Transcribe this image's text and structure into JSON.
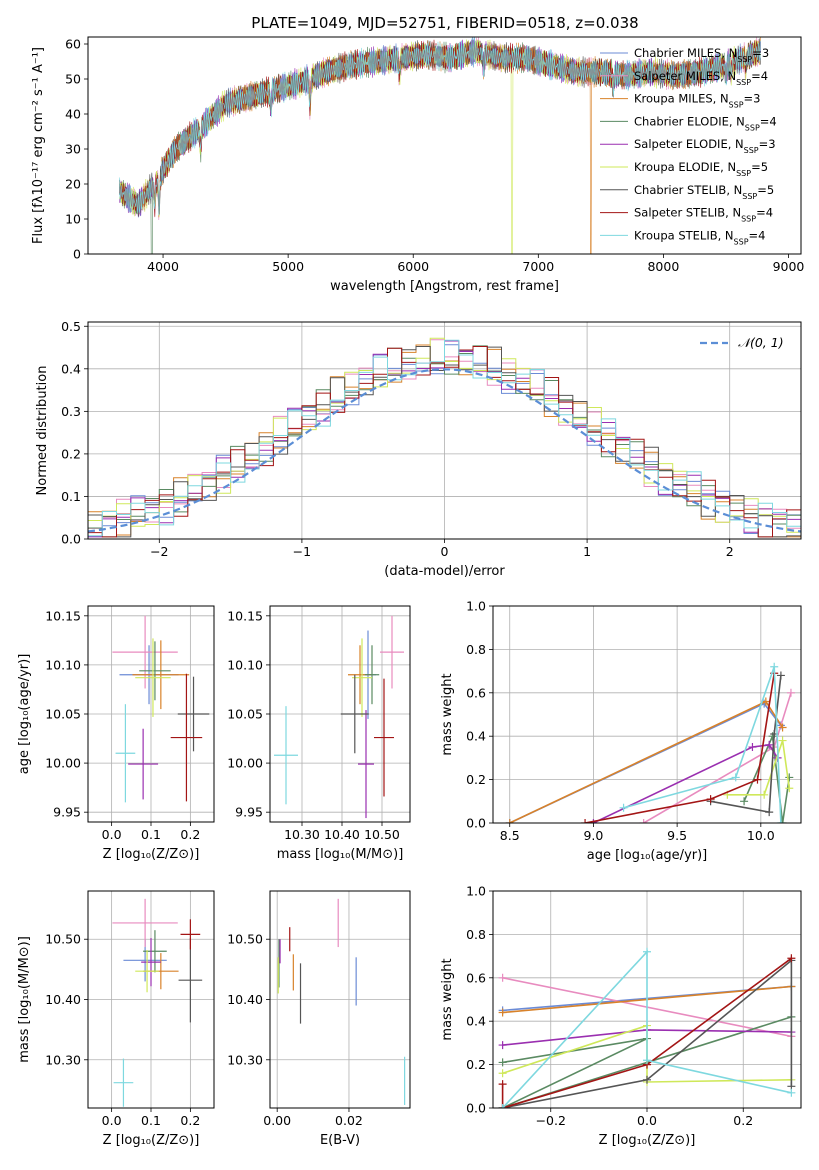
{
  "figure": {
    "title": "PLATE=1049, MJD=52751, FIBERID=0518, z=0.038"
  },
  "colors": {
    "chabrier_miles": "#6b8bd6",
    "salpeter_miles": "#e88bbf",
    "kroupa_miles": "#d8822a",
    "chabrier_elodie": "#5a8a62",
    "salpeter_elodie": "#9a2fb0",
    "kroupa_elodie": "#cfe85a",
    "chabrier_stelib": "#555555",
    "salpeter_stelib": "#a31515",
    "kroupa_stelib": "#7ed8df",
    "normal": "#5b8ed6"
  },
  "legend_labels": [
    {
      "main": "Chabrier MILES, N",
      "sub": "SSP",
      "tail": "=3",
      "color": "#6b8bd6"
    },
    {
      "main": "Salpeter MILES, N",
      "sub": "SSP",
      "tail": "=4",
      "color": "#e88bbf"
    },
    {
      "main": "Kroupa MILES, N",
      "sub": "SSP",
      "tail": "=3",
      "color": "#d8822a"
    },
    {
      "main": "Chabrier ELODIE, N",
      "sub": "SSP",
      "tail": "=4",
      "color": "#5a8a62"
    },
    {
      "main": "Salpeter ELODIE, N",
      "sub": "SSP",
      "tail": "=3",
      "color": "#9a2fb0"
    },
    {
      "main": "Kroupa ELODIE, N",
      "sub": "SSP",
      "tail": "=5",
      "color": "#cfe85a"
    },
    {
      "main": "Chabrier STELIB, N",
      "sub": "SSP",
      "tail": "=5",
      "color": "#555555"
    },
    {
      "main": "Salpeter STELIB, N",
      "sub": "SSP",
      "tail": "=4",
      "color": "#a31515"
    },
    {
      "main": "Kroupa STELIB, N",
      "sub": "SSP",
      "tail": "=4",
      "color": "#7ed8df"
    }
  ],
  "chart_data": [
    {
      "id": "spectrum",
      "type": "line",
      "xlabel": "wavelength [Angstrom, rest frame]",
      "ylabel": "Flux [fλ10⁻¹⁷ erg cm⁻² s⁻¹ A⁻¹]",
      "xlim": [
        3400,
        9100
      ],
      "ylim": [
        0,
        62
      ],
      "xticks": [
        4000,
        5000,
        6000,
        7000,
        8000,
        9000
      ],
      "yticks": [
        0,
        10,
        20,
        30,
        40,
        50,
        60
      ],
      "grid": false,
      "legend": "right",
      "continuum": [
        [
          3650,
          18
        ],
        [
          3800,
          14
        ],
        [
          3950,
          21
        ],
        [
          4100,
          30
        ],
        [
          4300,
          36
        ],
        [
          4500,
          43
        ],
        [
          4700,
          45
        ],
        [
          4900,
          47
        ],
        [
          5100,
          49
        ],
        [
          5300,
          52
        ],
        [
          5500,
          54
        ],
        [
          5700,
          55
        ],
        [
          5900,
          56
        ],
        [
          6100,
          57
        ],
        [
          6300,
          56
        ],
        [
          6500,
          58
        ],
        [
          6700,
          56
        ],
        [
          6900,
          56
        ],
        [
          7100,
          54
        ],
        [
          7300,
          52
        ],
        [
          7500,
          52
        ],
        [
          7700,
          51
        ],
        [
          7900,
          52
        ],
        [
          8100,
          51
        ],
        [
          8300,
          52
        ],
        [
          8500,
          54
        ],
        [
          8700,
          57
        ],
        [
          8780,
          58
        ]
      ],
      "dips": [
        [
          3933,
          6
        ],
        [
          3968,
          9
        ],
        [
          4300,
          6
        ],
        [
          4861,
          5
        ],
        [
          5175,
          8
        ],
        [
          5890,
          5
        ],
        [
          6563,
          4
        ],
        [
          7600,
          4
        ],
        [
          8500,
          3
        ],
        [
          8540,
          3
        ],
        [
          8660,
          3
        ]
      ],
      "drops": [
        [
          3910,
          "#5a8a62"
        ],
        [
          6790,
          "#cfe85a"
        ],
        [
          7420,
          "#d8822a"
        ]
      ]
    },
    {
      "id": "residuals",
      "type": "line",
      "xlabel": "(data-model)/error",
      "ylabel": "Normed distribution",
      "xlim": [
        -2.5,
        2.5
      ],
      "ylim": [
        0,
        0.51
      ],
      "xticks": [
        -2,
        -1,
        0,
        1,
        2
      ],
      "yticks": [
        0.0,
        0.1,
        0.2,
        0.3,
        0.4,
        0.5
      ],
      "grid": true,
      "legend": "top-right",
      "legend_label": "𝒩(0, 1)",
      "bin_width": 0.1
    },
    {
      "id": "age_vs_Z",
      "type": "scatter",
      "xlabel": "Z [log₁₀(Z/Z⊙)]",
      "ylabel": "age  [log₁₀(age/yr)]",
      "xlim": [
        -0.06,
        0.26
      ],
      "ylim": [
        9.94,
        10.16
      ],
      "xticks": [
        0.0,
        0.1,
        0.2
      ],
      "yticks": [
        9.95,
        10.0,
        10.05,
        10.1,
        10.15
      ],
      "grid": true,
      "points": [
        {
          "x": 0.095,
          "y": 10.09,
          "xe": 0.075,
          "ye": 0.03,
          "color": "#6b8bd6"
        },
        {
          "x": 0.085,
          "y": 10.113,
          "xe": 0.083,
          "ye": 0.037,
          "color": "#e88bbf"
        },
        {
          "x": 0.125,
          "y": 10.09,
          "xe": 0.072,
          "ye": 0.035,
          "color": "#d8822a"
        },
        {
          "x": 0.11,
          "y": 10.094,
          "xe": 0.04,
          "ye": 0.03,
          "color": "#5a8a62"
        },
        {
          "x": 0.08,
          "y": 9.999,
          "xe": 0.038,
          "ye": 0.036,
          "color": "#9a2fb0"
        },
        {
          "x": 0.105,
          "y": 10.087,
          "xe": 0.045,
          "ye": 0.04,
          "color": "#cfe85a"
        },
        {
          "x": 0.208,
          "y": 10.05,
          "xe": 0.04,
          "ye": 0.038,
          "color": "#555555"
        },
        {
          "x": 0.19,
          "y": 10.026,
          "xe": 0.04,
          "ye": 0.065,
          "color": "#a31515"
        },
        {
          "x": 0.035,
          "y": 10.01,
          "xe": 0.025,
          "ye": 0.05,
          "color": "#7ed8df"
        }
      ]
    },
    {
      "id": "age_vs_mass",
      "type": "scatter",
      "xlabel": "mass [log₁₀(M/M⊙)]",
      "ylabel": "",
      "xlim": [
        10.22,
        10.57
      ],
      "ylim": [
        9.94,
        10.16
      ],
      "xticks": [
        10.3,
        10.4,
        10.5
      ],
      "yticks": [
        9.95,
        10.0,
        10.05,
        10.1,
        10.15
      ],
      "grid": true,
      "points": [
        {
          "x": 10.465,
          "y": 10.09,
          "xe": 0.02,
          "ye": 0.045,
          "color": "#6b8bd6"
        },
        {
          "x": 10.525,
          "y": 10.113,
          "xe": 0.03,
          "ye": 0.037,
          "color": "#e88bbf"
        },
        {
          "x": 10.445,
          "y": 10.09,
          "xe": 0.03,
          "ye": 0.03,
          "color": "#d8822a"
        },
        {
          "x": 10.475,
          "y": 10.09,
          "xe": 0.018,
          "ye": 0.03,
          "color": "#5a8a62"
        },
        {
          "x": 10.46,
          "y": 9.999,
          "xe": 0.02,
          "ye": 0.055,
          "color": "#9a2fb0"
        },
        {
          "x": 10.45,
          "y": 10.087,
          "xe": 0.025,
          "ye": 0.04,
          "color": "#cfe85a"
        },
        {
          "x": 10.432,
          "y": 10.05,
          "xe": 0.035,
          "ye": 0.04,
          "color": "#555555"
        },
        {
          "x": 10.505,
          "y": 10.026,
          "xe": 0.025,
          "ye": 0.06,
          "color": "#a31515"
        },
        {
          "x": 10.26,
          "y": 10.008,
          "xe": 0.03,
          "ye": 0.05,
          "color": "#7ed8df"
        }
      ]
    },
    {
      "id": "weight_vs_age",
      "type": "line",
      "xlabel": "age  [log₁₀(age/yr)]",
      "ylabel": "mass weight",
      "xlim": [
        8.4,
        10.24
      ],
      "ylim": [
        0,
        1.0
      ],
      "xticks": [
        8.5,
        9.0,
        9.5,
        10.0
      ],
      "yticks": [
        0.0,
        0.2,
        0.4,
        0.6,
        0.8,
        1.0
      ],
      "grid": true,
      "series": [
        {
          "color": "#6b8bd6",
          "points": [
            [
              8.5,
              0.0
            ],
            [
              10.02,
              0.55
            ],
            [
              10.12,
              0.45
            ]
          ]
        },
        {
          "color": "#e88bbf",
          "points": [
            [
              9.3,
              0.0
            ],
            [
              10.08,
              0.35
            ],
            [
              10.18,
              0.6
            ]
          ]
        },
        {
          "color": "#d8822a",
          "points": [
            [
              8.5,
              0.0
            ],
            [
              10.03,
              0.56
            ],
            [
              10.13,
              0.44
            ]
          ]
        },
        {
          "color": "#5a8a62",
          "points": [
            [
              9.9,
              0.1
            ],
            [
              10.07,
              0.4
            ],
            [
              10.13,
              0.0
            ],
            [
              10.17,
              0.21
            ]
          ]
        },
        {
          "color": "#9a2fb0",
          "points": [
            [
              9.0,
              0.0
            ],
            [
              9.95,
              0.35
            ],
            [
              10.05,
              0.36
            ],
            [
              10.1,
              0.3
            ]
          ]
        },
        {
          "color": "#cfe85a",
          "points": [
            [
              9.8,
              0.13
            ],
            [
              10.02,
              0.13
            ],
            [
              10.13,
              0.38
            ],
            [
              10.17,
              0.16
            ]
          ]
        },
        {
          "color": "#555555",
          "points": [
            [
              9.7,
              0.1
            ],
            [
              10.05,
              0.05
            ],
            [
              10.08,
              0.41
            ],
            [
              10.12,
              0.68
            ]
          ]
        },
        {
          "color": "#a31515",
          "points": [
            [
              8.95,
              0.0
            ],
            [
              9.7,
              0.11
            ],
            [
              9.98,
              0.2
            ],
            [
              10.08,
              0.69
            ]
          ]
        },
        {
          "color": "#7ed8df",
          "points": [
            [
              9.18,
              0.07
            ],
            [
              9.85,
              0.21
            ],
            [
              10.08,
              0.72
            ],
            [
              10.12,
              0.0
            ]
          ]
        }
      ]
    },
    {
      "id": "mass_vs_Z",
      "type": "scatter",
      "xlabel": "Z [log₁₀(Z/Z⊙)]",
      "ylabel": "mass [log₁₀(M/M⊙)]",
      "xlim": [
        -0.06,
        0.26
      ],
      "ylim": [
        10.22,
        10.58
      ],
      "xticks": [
        0.0,
        0.1,
        0.2
      ],
      "yticks": [
        10.3,
        10.4,
        10.5
      ],
      "grid": true,
      "points": [
        {
          "x": 0.085,
          "y": 10.465,
          "xe": 0.055,
          "ye": 0.035,
          "color": "#6b8bd6"
        },
        {
          "x": 0.085,
          "y": 10.527,
          "xe": 0.083,
          "ye": 0.04,
          "color": "#e88bbf"
        },
        {
          "x": 0.125,
          "y": 10.447,
          "xe": 0.045,
          "ye": 0.03,
          "color": "#d8822a"
        },
        {
          "x": 0.11,
          "y": 10.48,
          "xe": 0.03,
          "ye": 0.035,
          "color": "#5a8a62"
        },
        {
          "x": 0.1,
          "y": 10.462,
          "xe": 0.025,
          "ye": 0.04,
          "color": "#9a2fb0"
        },
        {
          "x": 0.09,
          "y": 10.447,
          "xe": 0.03,
          "ye": 0.035,
          "color": "#cfe85a"
        },
        {
          "x": 0.2,
          "y": 10.432,
          "xe": 0.03,
          "ye": 0.07,
          "color": "#555555"
        },
        {
          "x": 0.2,
          "y": 10.508,
          "xe": 0.025,
          "ye": 0.025,
          "color": "#a31515"
        },
        {
          "x": 0.03,
          "y": 10.262,
          "xe": 0.025,
          "ye": 0.04,
          "color": "#7ed8df"
        }
      ]
    },
    {
      "id": "mass_vs_ebv",
      "type": "scatter",
      "xlabel": "E(B-V)",
      "ylabel": "",
      "xlim": [
        -0.002,
        0.037
      ],
      "ylim": [
        10.22,
        10.58
      ],
      "xticks": [
        0.0,
        0.02
      ],
      "yticks": [
        10.3,
        10.4,
        10.5
      ],
      "grid": true,
      "points": [
        {
          "x": 0.022,
          "y": 10.43,
          "xe": 0,
          "ye": 0.04,
          "color": "#6b8bd6"
        },
        {
          "x": 0.017,
          "y": 10.527,
          "xe": 0,
          "ye": 0.04,
          "color": "#e88bbf"
        },
        {
          "x": 0.0045,
          "y": 10.445,
          "xe": 0,
          "ye": 0.03,
          "color": "#d8822a"
        },
        {
          "x": 0.0005,
          "y": 10.46,
          "xe": 0,
          "ye": 0.04,
          "color": "#5a8a62"
        },
        {
          "x": 0.0008,
          "y": 10.48,
          "xe": 0,
          "ye": 0.02,
          "color": "#9a2fb0"
        },
        {
          "x": 0.0003,
          "y": 10.44,
          "xe": 0,
          "ye": 0.03,
          "color": "#cfe85a"
        },
        {
          "x": 0.0065,
          "y": 10.41,
          "xe": 0,
          "ye": 0.05,
          "color": "#555555"
        },
        {
          "x": 0.0035,
          "y": 10.5,
          "xe": 0,
          "ye": 0.02,
          "color": "#a31515"
        },
        {
          "x": 0.0355,
          "y": 10.265,
          "xe": 0,
          "ye": 0.04,
          "color": "#7ed8df"
        }
      ]
    },
    {
      "id": "weight_vs_Z",
      "type": "line",
      "xlabel": "Z [log₁₀(Z/Z⊙)]",
      "ylabel": "mass weight",
      "xlim": [
        -0.32,
        0.32
      ],
      "ylim": [
        0,
        1.0
      ],
      "xticks": [
        -0.2,
        0.0,
        0.2
      ],
      "yticks": [
        0.0,
        0.2,
        0.4,
        0.6,
        0.8,
        1.0
      ],
      "grid": true,
      "series": [
        {
          "color": "#6b8bd6",
          "points": [
            [
              -0.3,
              0.45
            ],
            [
              0.3,
              0.56
            ]
          ]
        },
        {
          "color": "#e88bbf",
          "points": [
            [
              -0.3,
              0.6
            ],
            [
              0.3,
              0.33
            ]
          ]
        },
        {
          "color": "#d8822a",
          "points": [
            [
              -0.3,
              0.44
            ],
            [
              0.3,
              0.56
            ]
          ]
        },
        {
          "color": "#5a8a62",
          "points": [
            [
              -0.3,
              0.21
            ],
            [
              0.0,
              0.32
            ],
            [
              -0.3,
              0.0
            ],
            [
              0.3,
              0.42
            ]
          ]
        },
        {
          "color": "#9a2fb0",
          "points": [
            [
              -0.3,
              0.29
            ],
            [
              0.0,
              0.36
            ],
            [
              0.3,
              0.35
            ]
          ]
        },
        {
          "color": "#cfe85a",
          "points": [
            [
              -0.3,
              0.16
            ],
            [
              0.0,
              0.38
            ],
            [
              0.0,
              0.12
            ],
            [
              0.3,
              0.13
            ]
          ]
        },
        {
          "color": "#555555",
          "points": [
            [
              -0.3,
              0.0
            ],
            [
              0.0,
              0.13
            ],
            [
              0.3,
              0.68
            ],
            [
              0.3,
              0.1
            ]
          ]
        },
        {
          "color": "#a31515",
          "points": [
            [
              -0.3,
              0.11
            ],
            [
              -0.3,
              0.0
            ],
            [
              0.0,
              0.2
            ],
            [
              0.3,
              0.69
            ]
          ]
        },
        {
          "color": "#7ed8df",
          "points": [
            [
              -0.3,
              0.0
            ],
            [
              0.0,
              0.72
            ],
            [
              0.0,
              0.22
            ],
            [
              0.3,
              0.07
            ]
          ]
        }
      ]
    }
  ]
}
